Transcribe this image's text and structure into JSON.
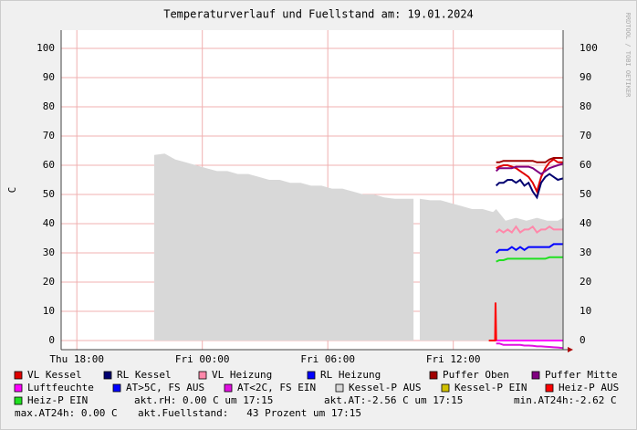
{
  "chart_data": {
    "type": "line",
    "title": "Temperaturverlauf und Fuellstand am: 19.01.2024",
    "y_label": "C",
    "watermark": "RRDTOOL / TOBI OETIKER",
    "xlim": [
      17.25,
      41.25
    ],
    "xticks": [
      {
        "value": 18,
        "label": "Thu 18:00"
      },
      {
        "value": 24,
        "label": "Fri 00:00"
      },
      {
        "value": 30,
        "label": "Fri 06:00"
      },
      {
        "value": 36,
        "label": "Fri 12:00"
      }
    ],
    "ylim": [
      -3.125,
      106.25
    ],
    "yticks": [
      0,
      10,
      20,
      30,
      40,
      50,
      60,
      70,
      80,
      90,
      100
    ],
    "grid": true,
    "series": [
      {
        "name": "VL Kessel",
        "color": "#e00000",
        "x": [
          38.05,
          38.2,
          38.4,
          38.6,
          38.8,
          39.0,
          39.2,
          39.4,
          39.6,
          39.8,
          40.0,
          40.2,
          40.4,
          40.6,
          40.8,
          41.0,
          41.25
        ],
        "values": [
          59,
          59.5,
          60,
          60,
          59.5,
          59,
          58,
          57,
          56,
          54,
          51,
          56,
          59,
          61,
          62,
          61,
          61
        ]
      },
      {
        "name": "RL Kessel",
        "color": "#000070",
        "x": [
          38.05,
          38.2,
          38.4,
          38.6,
          38.8,
          39.0,
          39.2,
          39.4,
          39.6,
          39.8,
          40.0,
          40.2,
          40.4,
          40.6,
          40.8,
          41.0,
          41.25
        ],
        "values": [
          53,
          54,
          54,
          55,
          55,
          54,
          55,
          53,
          54,
          51,
          49,
          54,
          56,
          57,
          56,
          55,
          55.5
        ]
      },
      {
        "name": "VL Heizung",
        "color": "#ff88aa",
        "x": [
          38.05,
          38.2,
          38.4,
          38.6,
          38.8,
          39.0,
          39.2,
          39.4,
          39.6,
          39.8,
          40.0,
          40.2,
          40.4,
          40.6,
          40.8,
          41.0,
          41.25
        ],
        "values": [
          37,
          38,
          37,
          38,
          37,
          39,
          37,
          38,
          38,
          39,
          37,
          38,
          38,
          39,
          38,
          38,
          38
        ]
      },
      {
        "name": "RL Heizung",
        "color": "#0000ff",
        "x": [
          38.05,
          38.2,
          38.4,
          38.6,
          38.8,
          39.0,
          39.2,
          39.4,
          39.6,
          39.8,
          40.0,
          40.2,
          40.4,
          40.6,
          40.8,
          41.0,
          41.25
        ],
        "values": [
          30,
          31,
          31,
          31,
          32,
          31,
          32,
          31,
          32,
          32,
          32,
          32,
          32,
          32,
          33,
          33,
          33
        ]
      },
      {
        "name": "Puffer Oben",
        "color": "#a00000",
        "x": [
          38.05,
          38.2,
          38.4,
          38.6,
          38.8,
          39.0,
          39.2,
          39.4,
          39.6,
          39.8,
          40.0,
          40.2,
          40.4,
          40.6,
          40.8,
          41.0,
          41.25
        ],
        "values": [
          61,
          61,
          61.5,
          61.5,
          61.5,
          61.5,
          61.5,
          61.5,
          61.5,
          61.5,
          61,
          61,
          61,
          62,
          62.5,
          62.5,
          62.5
        ]
      },
      {
        "name": "Puffer Mitte",
        "color": "#800080",
        "x": [
          38.05,
          38.2,
          38.4,
          38.6,
          38.8,
          39.0,
          39.2,
          39.4,
          39.6,
          39.8,
          40.0,
          40.2,
          40.4,
          40.6,
          40.8,
          41.0,
          41.25
        ],
        "values": [
          58,
          59,
          59,
          59,
          59,
          59.5,
          59.5,
          59.5,
          59.5,
          59,
          58,
          57,
          58,
          59,
          59.5,
          60,
          60.5
        ]
      },
      {
        "name": "Luftfeuchte",
        "color": "#ff00ff",
        "x": [
          38.05,
          38.6,
          39.2,
          39.8,
          40.4,
          41.0,
          41.25
        ],
        "values": [
          0,
          0,
          0,
          0,
          0,
          0,
          0
        ]
      },
      {
        "name": "AT>5C, FS AUS",
        "color": "#0000ff",
        "x": [],
        "values": []
      },
      {
        "name": "AT<2C, FS EIN",
        "color": "#e010e0",
        "x": [
          38.05,
          38.2,
          38.4,
          38.6,
          38.8,
          39.0,
          39.2,
          39.4,
          39.6,
          39.8,
          40.0,
          40.2,
          40.4,
          40.6,
          40.8,
          41.0,
          41.25
        ],
        "values": [
          -1,
          -1,
          -1.5,
          -1.5,
          -1.5,
          -1.5,
          -1.5,
          -1.7,
          -1.7,
          -1.8,
          -2,
          -2,
          -2.1,
          -2.2,
          -2.3,
          -2.4,
          -2.56
        ]
      },
      {
        "name": "Kessel-P AUS",
        "color": "#d8d8d8",
        "style": "area",
        "x": [
          21.7,
          22.2,
          22.7,
          23.2,
          23.7,
          24.2,
          24.7,
          25.2,
          25.7,
          26.2,
          26.7,
          27.2,
          27.7,
          28.2,
          28.7,
          29.2,
          29.7,
          30.2,
          30.7,
          31.2,
          31.7,
          32.2,
          32.7,
          33.2,
          33.7,
          34.1,
          34.2,
          34.4,
          34.9,
          35.4,
          35.9,
          36.4,
          36.9,
          37.4,
          37.9,
          38.05,
          38.5,
          39,
          39.5,
          40,
          40.5,
          41,
          41.25
        ],
        "values": [
          63.5,
          64,
          62,
          61,
          60,
          59,
          58,
          58,
          57,
          57,
          56,
          55,
          55,
          54,
          54,
          53,
          53,
          52,
          52,
          51,
          50,
          50,
          49,
          48.5,
          48.5,
          48.5,
          null,
          48.5,
          48,
          48,
          47,
          46,
          45,
          45,
          44,
          45,
          41,
          42,
          41,
          42,
          41,
          41,
          42
        ]
      },
      {
        "name": "Kessel-P EIN",
        "color": "#d0c000",
        "x": [],
        "values": []
      },
      {
        "name": "Heiz-P AUS",
        "color": "#ff0000",
        "x": [
          37.7,
          38.0,
          38.02,
          38.05
        ],
        "values": [
          0,
          0,
          13,
          0
        ]
      },
      {
        "name": "Heiz-P EIN",
        "color": "#20e020",
        "x": [
          38.05,
          38.2,
          38.4,
          38.6,
          38.8,
          39.0,
          39.2,
          39.4,
          39.6,
          39.8,
          40.0,
          40.2,
          40.4,
          40.6,
          40.8,
          41.0,
          41.25
        ],
        "values": [
          27,
          27.5,
          27.5,
          28,
          28,
          28,
          28,
          28,
          28,
          28,
          28,
          28,
          28,
          28.5,
          28.5,
          28.5,
          28.5
        ]
      }
    ],
    "comments": [
      "akt.rH: 0.00 C um 17:15",
      "akt.AT:-2.56 C um 17:15",
      "min.AT24h:-2.62 C",
      "max.AT24h: 0.00 C",
      "akt.Fuellstand:   43 Prozent um 17:15"
    ]
  }
}
